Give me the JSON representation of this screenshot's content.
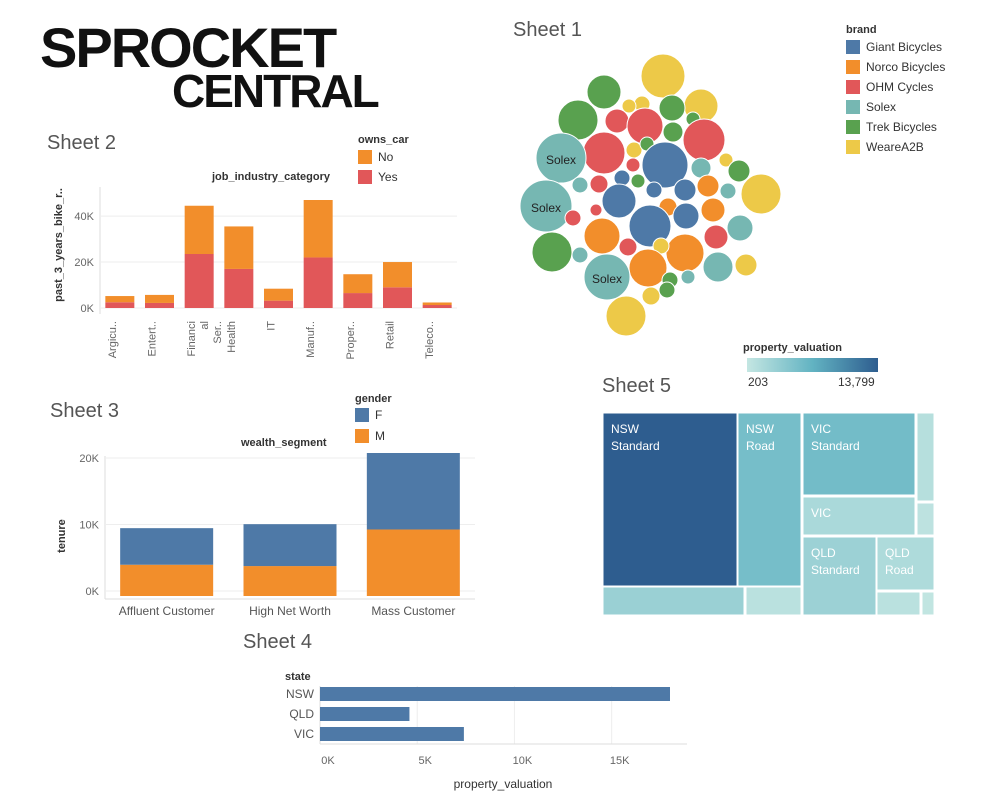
{
  "logo": {
    "text_line1": "SPROCKET",
    "text_line2": "CENTRAL"
  },
  "sheet1": {
    "title": "Sheet 1",
    "legend_title": "brand",
    "legend": [
      {
        "label": "Giant Bicycles",
        "color": "#4e79a7"
      },
      {
        "label": "Norco Bicycles",
        "color": "#f28e2b"
      },
      {
        "label": "OHM Cycles",
        "color": "#e15759"
      },
      {
        "label": "Solex",
        "color": "#76b7b2"
      },
      {
        "label": "Trek Bicycles",
        "color": "#59a14f"
      },
      {
        "label": "WeareA2B",
        "color": "#edc948"
      }
    ],
    "bubble_labels": [
      "Solex",
      "Solex",
      "Solex"
    ]
  },
  "chart_data": [
    {
      "id": "sheet2",
      "type": "bar",
      "title": "Sheet 2",
      "xlabel": "job_industry_category",
      "ylabel": "past_3_years_bike_r..",
      "categories": [
        "Argicu..",
        "Entert..",
        "Financi al Ser..",
        "Health",
        "IT",
        "Manuf..",
        "Proper..",
        "Retail",
        "Teleco.."
      ],
      "legend_title": "owns_car",
      "series": [
        {
          "name": "Yes",
          "color": "#e15759",
          "values": [
            2500,
            2200,
            23500,
            17000,
            3200,
            22000,
            6500,
            9000,
            1300
          ]
        },
        {
          "name": "No",
          "color": "#f28e2b",
          "values": [
            2700,
            3500,
            21000,
            18500,
            5200,
            25000,
            8200,
            11000,
            1100
          ]
        }
      ],
      "yticks": [
        "0K",
        "20K",
        "40K"
      ],
      "ylim": [
        0,
        47000
      ],
      "stacked": true
    },
    {
      "id": "sheet3",
      "type": "bar",
      "title": "Sheet 3",
      "xlabel": "wealth_segment",
      "ylabel": "tenure",
      "categories": [
        "Affluent Customer",
        "High Net Worth",
        "Mass Customer"
      ],
      "legend_title": "gender",
      "series": [
        {
          "name": "M",
          "color": "#f28e2b",
          "values": [
            4700,
            4500,
            10000
          ]
        },
        {
          "name": "F",
          "color": "#4e79a7",
          "values": [
            5500,
            6300,
            11500
          ]
        }
      ],
      "yticks": [
        "0K",
        "10K",
        "20K"
      ],
      "ylim": [
        0,
        21500
      ],
      "stacked": true
    },
    {
      "id": "sheet4",
      "type": "bar",
      "title": "Sheet 4",
      "orientation": "horizontal",
      "ylabel": "state",
      "xlabel": "property_valuation",
      "categories": [
        "NSW",
        "QLD",
        "VIC"
      ],
      "values": [
        18000,
        4600,
        7400
      ],
      "color": "#4e79a7",
      "xticks": [
        "0K",
        "5K",
        "10K",
        "15K"
      ],
      "xlim": [
        0,
        18000
      ]
    },
    {
      "id": "sheet5",
      "type": "treemap",
      "title": "Sheet 5",
      "legend_title": "property_valuation",
      "legend_min": "203",
      "legend_max": "13,799",
      "tiles": [
        {
          "label_line1": "NSW",
          "label_line2": "Standard",
          "value": 13799
        },
        {
          "label_line1": "NSW",
          "label_line2": "Road",
          "value": 5600
        },
        {
          "label_line1": "VIC",
          "label_line2": "Standard",
          "value": 5800
        },
        {
          "label_line1": "VIC",
          "label_line2": "",
          "value": 2000
        },
        {
          "label_line1": "QLD",
          "label_line2": "Standard",
          "value": 3000
        },
        {
          "label_line1": "QLD",
          "label_line2": "Road",
          "value": 1700
        }
      ]
    }
  ]
}
